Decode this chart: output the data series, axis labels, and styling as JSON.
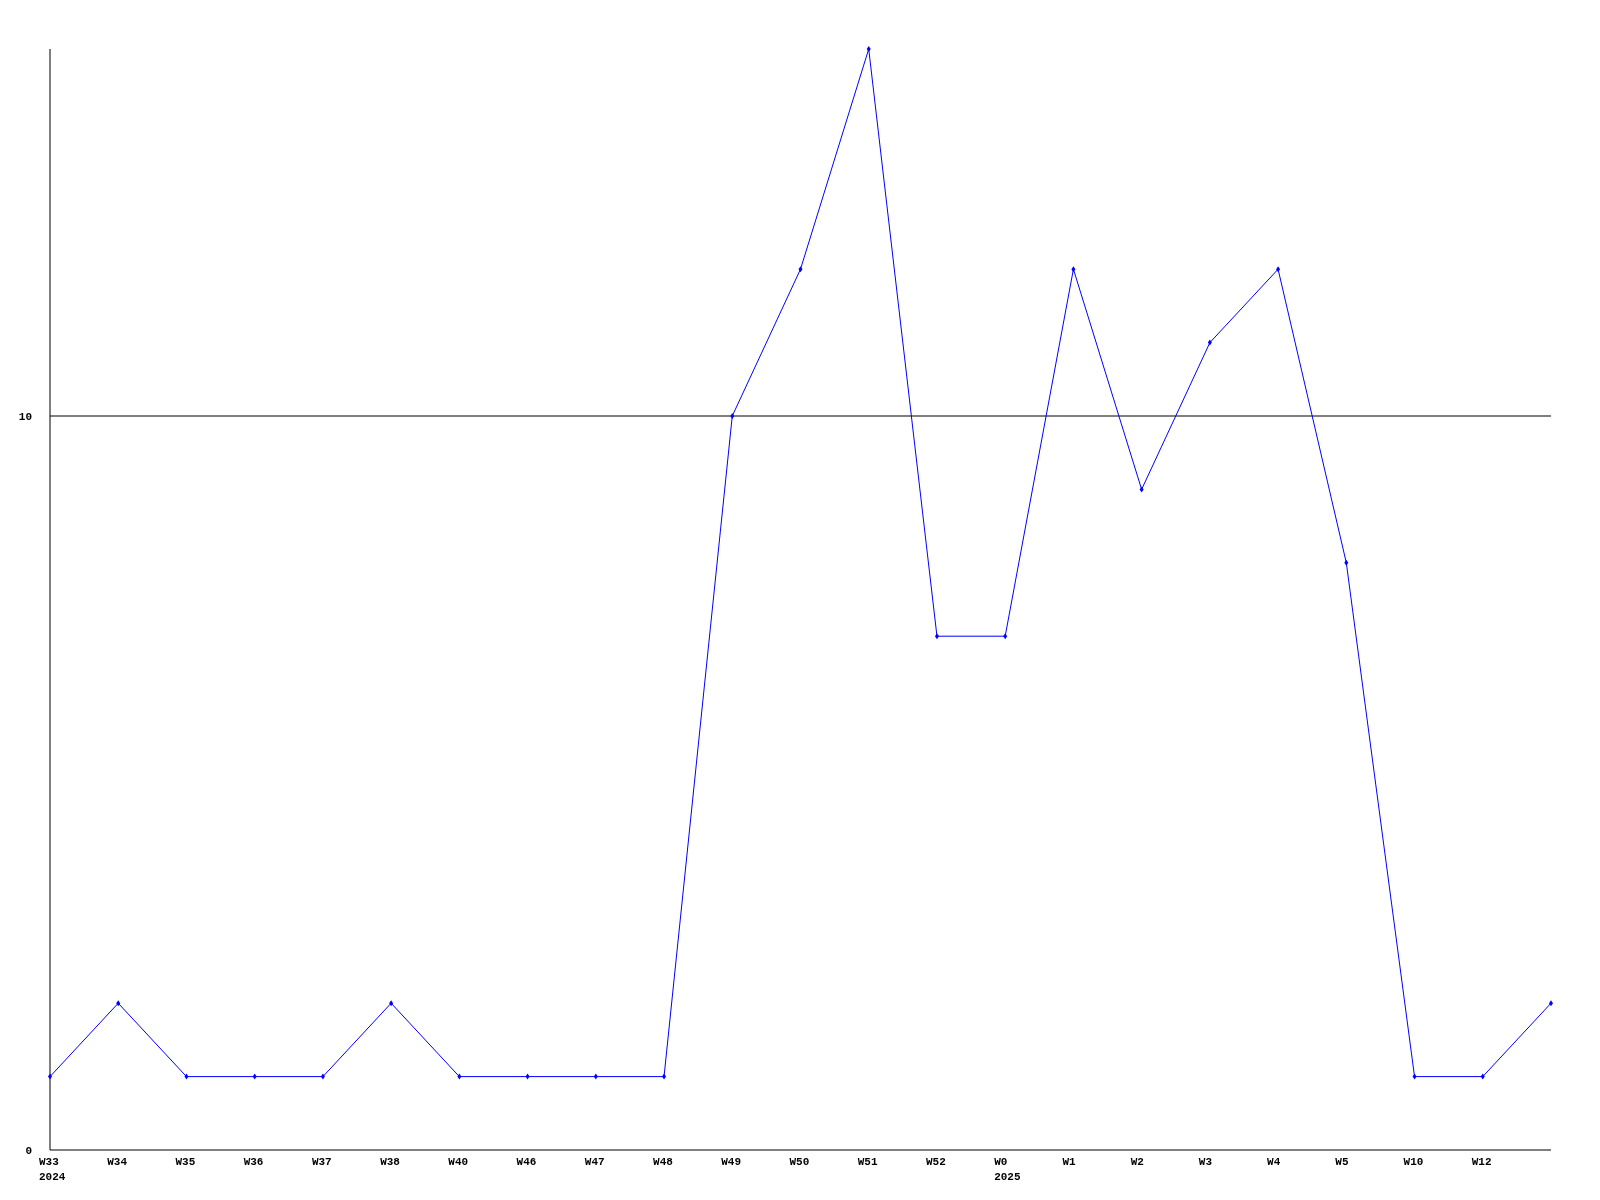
{
  "chart_data": {
    "type": "line",
    "categories": [
      "W33\n2024",
      "W34",
      "W35",
      "W36",
      "W37",
      "W38",
      "W40",
      "W46",
      "W47",
      "W48",
      "W49",
      "W50",
      "W51",
      "W52",
      "W0\n2025",
      "W1",
      "W2",
      "W3",
      "W4",
      "W5",
      "W10",
      "W12",
      null
    ],
    "series": [
      {
        "color": "#0000ff",
        "values": [
          1,
          2,
          1,
          1,
          1,
          2,
          1,
          1,
          1,
          1,
          10,
          12,
          15,
          7,
          7,
          12,
          9,
          11,
          12,
          8,
          1,
          1,
          2
        ]
      }
    ],
    "ylim": [
      0,
      15
    ],
    "yticks": [
      0,
      10
    ],
    "grid": "y",
    "marker": "diamond",
    "line_style": "solid"
  }
}
